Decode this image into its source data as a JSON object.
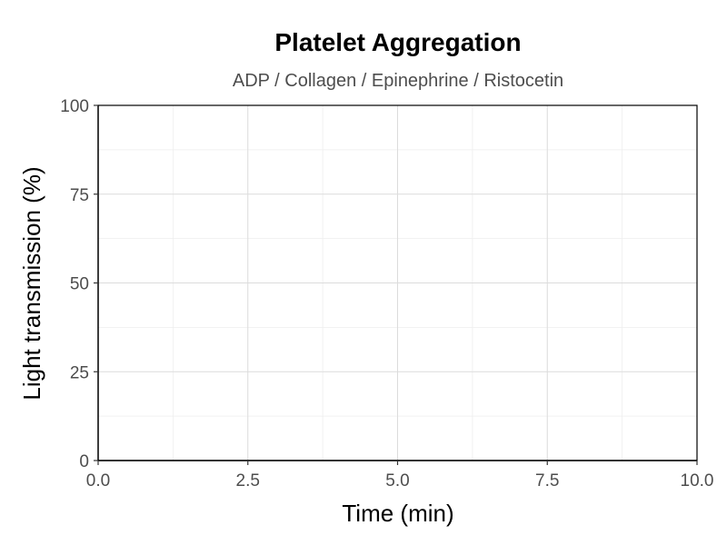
{
  "chart_data": {
    "type": "line",
    "title": "Platelet Aggregation",
    "subtitle": "ADP / Collagen / Epinephrine / Ristocetin",
    "xlabel": "Time (min)",
    "ylabel": "Light transmission (%)",
    "xlim": [
      0,
      10
    ],
    "ylim": [
      0,
      100
    ],
    "x_ticks": [
      0,
      2.5,
      5,
      7.5,
      10
    ],
    "x_tick_labels": [
      "0.0",
      "2.5",
      "5.0",
      "7.5",
      "10.0"
    ],
    "y_ticks": [
      0,
      25,
      50,
      75,
      100
    ],
    "y_tick_labels": [
      "0",
      "25",
      "50",
      "75",
      "100"
    ],
    "grid": true,
    "series": []
  }
}
